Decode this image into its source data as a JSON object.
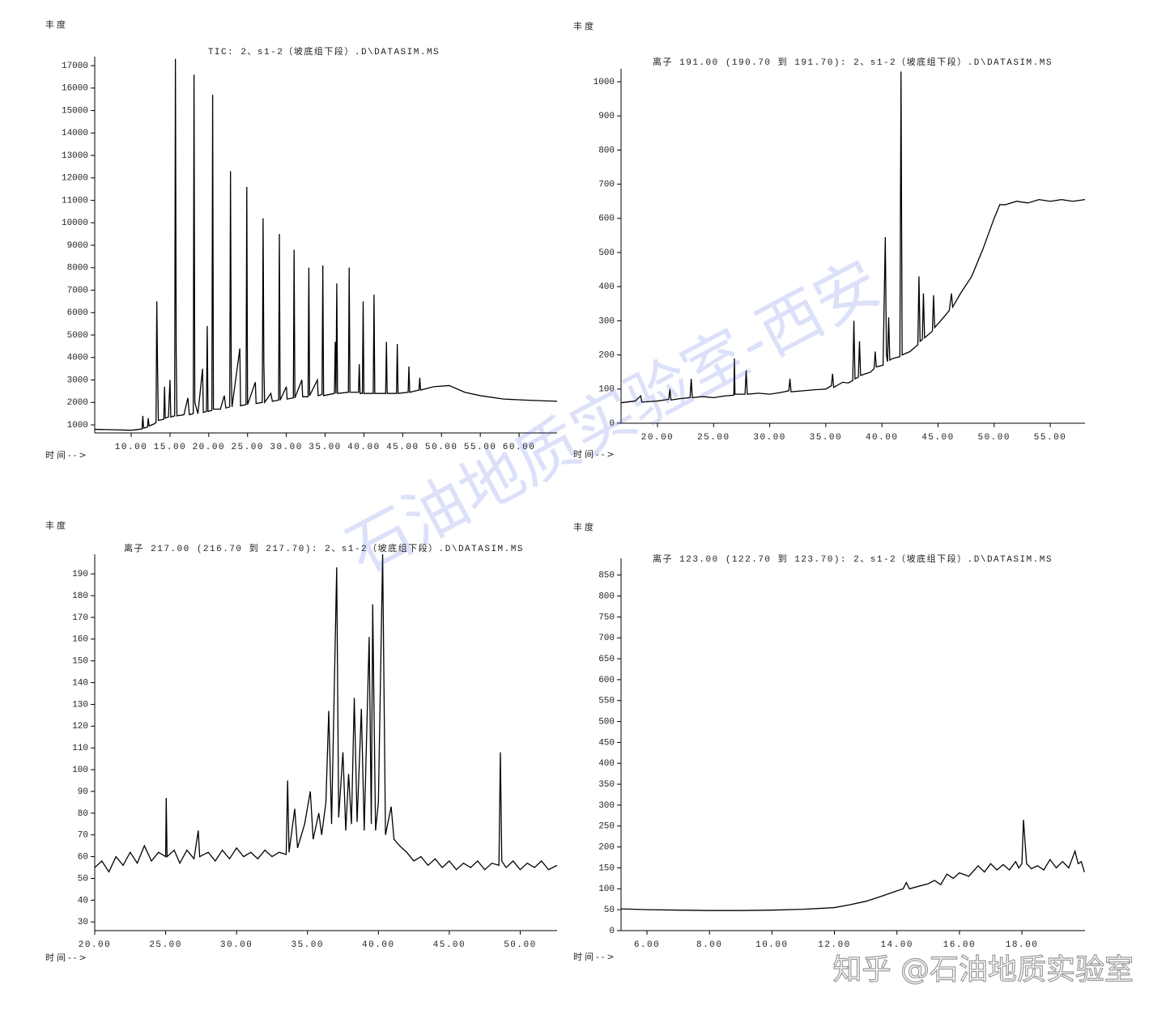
{
  "chart_data": [
    {
      "type": "line",
      "title": "TIC: 2、s1-2（坡底组下段）.D\\DATASIM.MS",
      "y_label": "丰度",
      "x_label": "时间-->",
      "color": "#000000",
      "xlim": [
        5.3,
        64.9
      ],
      "ylim": [
        640,
        17400
      ],
      "xticks": [
        {
          "value": 10,
          "label": "10.00"
        },
        {
          "value": 15,
          "label": "15.00"
        },
        {
          "value": 20,
          "label": "20.00"
        },
        {
          "value": 25,
          "label": "25.00"
        },
        {
          "value": 30,
          "label": "30.00"
        },
        {
          "value": 35,
          "label": "35.00"
        },
        {
          "value": 40,
          "label": "40.00"
        },
        {
          "value": 45,
          "label": "45.00"
        },
        {
          "value": 50,
          "label": "50.00"
        },
        {
          "value": 55,
          "label": "55.00"
        },
        {
          "value": 60,
          "label": "60.00"
        }
      ],
      "yticks": [
        1000,
        2000,
        3000,
        4000,
        5000,
        6000,
        7000,
        8000,
        9000,
        10000,
        11000,
        12000,
        13000,
        14000,
        15000,
        16000,
        17000
      ],
      "x": [
        5.3,
        8,
        10,
        11,
        11.4,
        11.5,
        11.6,
        12.1,
        12.2,
        12.3,
        13,
        13.2,
        13.3,
        13.4,
        13.5,
        14.2,
        14.3,
        14.4,
        14.8,
        15,
        15.1,
        15.6,
        15.7,
        15.8,
        15.9,
        16.8,
        17.3,
        17.5,
        18,
        18.1,
        18.2,
        18.6,
        19.2,
        19.3,
        19.7,
        19.8,
        19.9,
        20.4,
        20.5,
        20.6,
        21.5,
        22,
        22.2,
        22.7,
        22.8,
        22.9,
        23,
        24,
        24.1,
        24.8,
        24.9,
        25,
        26,
        26.1,
        26.9,
        27,
        27.1,
        27.2,
        28,
        28.2,
        29,
        29.1,
        29.2,
        30,
        30.1,
        30.9,
        31,
        31.1,
        32,
        32.1,
        32.8,
        32.9,
        33,
        34,
        34.1,
        34.6,
        34.7,
        34.8,
        36.2,
        36.3,
        36.4,
        36.5,
        36.6,
        38,
        38.1,
        38.2,
        39.3,
        39.4,
        39.5,
        39.8,
        39.9,
        40,
        41.2,
        41.3,
        41.4,
        42.8,
        42.9,
        43,
        44.2,
        44.3,
        44.4,
        45.7,
        45.8,
        45.9,
        47.1,
        47.2,
        47.3,
        49,
        51,
        53,
        55,
        58,
        61,
        64.9
      ],
      "values": [
        800,
        780,
        760,
        800,
        820,
        1400,
        850,
        900,
        1300,
        950,
        1050,
        1100,
        6500,
        3500,
        1200,
        1250,
        2700,
        1300,
        1350,
        3000,
        1350,
        1400,
        17300,
        4200,
        1400,
        1450,
        2200,
        1450,
        1500,
        16600,
        2000,
        1500,
        3500,
        1550,
        1600,
        5400,
        1600,
        1650,
        15700,
        1700,
        1700,
        2300,
        1750,
        1800,
        12300,
        3300,
        1800,
        4400,
        1850,
        1900,
        11600,
        1900,
        2900,
        1950,
        2000,
        10200,
        3700,
        2000,
        2400,
        2050,
        2100,
        9500,
        2100,
        2700,
        2150,
        2200,
        8800,
        2200,
        3000,
        2250,
        2250,
        8000,
        2300,
        3000,
        2300,
        2350,
        8100,
        2300,
        2400,
        4700,
        2400,
        7300,
        2400,
        2450,
        8000,
        2450,
        2450,
        3700,
        2400,
        2400,
        6500,
        2400,
        2400,
        6800,
        2400,
        2400,
        4700,
        2400,
        2400,
        4600,
        2400,
        2450,
        3600,
        2450,
        2550,
        3100,
        2550,
        2700,
        2750,
        2450,
        2300,
        2150,
        2100,
        2050
      ]
    },
    {
      "type": "line",
      "title": "离子 191.00 (190.70 到 191.70): 2、s1-2（坡底组下段）.D\\DATASIM.MS",
      "y_label": "丰度",
      "x_label": "时间-->",
      "color": "#000000",
      "xlim": [
        16.75,
        58.1
      ],
      "ylim": [
        0,
        1038
      ],
      "xticks": [
        {
          "value": 20,
          "label": "20.00"
        },
        {
          "value": 25,
          "label": "25.00"
        },
        {
          "value": 30,
          "label": "30.00"
        },
        {
          "value": 35,
          "label": "35.00"
        },
        {
          "value": 40,
          "label": "40.00"
        },
        {
          "value": 45,
          "label": "45.00"
        },
        {
          "value": 50,
          "label": "50.00"
        },
        {
          "value": 55,
          "label": "55.00"
        }
      ],
      "yticks": [
        0,
        100,
        200,
        300,
        400,
        500,
        600,
        700,
        800,
        900,
        1000
      ],
      "x": [
        16.75,
        18,
        18.5,
        18.6,
        20,
        21,
        21.1,
        21.2,
        22,
        22.9,
        23,
        23.1,
        24,
        25,
        26,
        26.8,
        26.85,
        26.9,
        27.8,
        27.9,
        28,
        29,
        30,
        31,
        31.7,
        31.8,
        31.9,
        33,
        34,
        35,
        35.5,
        35.6,
        35.7,
        36.5,
        37,
        37.4,
        37.5,
        37.6,
        37.9,
        38,
        38.1,
        39,
        39.3,
        39.4,
        39.5,
        40.1,
        40.3,
        40.4,
        40.5,
        40.6,
        40.7,
        41,
        41.6,
        41.7,
        41.8,
        42.5,
        43.2,
        43.3,
        43.4,
        43.6,
        43.7,
        43.8,
        44.5,
        44.6,
        44.7,
        45.5,
        46,
        46.2,
        46.3,
        47,
        48,
        49,
        50,
        50.5,
        51,
        52,
        53,
        54,
        55,
        56,
        57,
        58.1
      ],
      "values": [
        60,
        65,
        80,
        62,
        65,
        70,
        100,
        68,
        72,
        75,
        130,
        75,
        78,
        75,
        80,
        82,
        190,
        85,
        85,
        155,
        85,
        88,
        85,
        90,
        95,
        130,
        92,
        95,
        98,
        100,
        110,
        145,
        105,
        120,
        118,
        125,
        300,
        130,
        135,
        240,
        140,
        150,
        160,
        210,
        165,
        170,
        545,
        200,
        180,
        310,
        185,
        190,
        195,
        1030,
        200,
        210,
        230,
        430,
        240,
        245,
        380,
        250,
        270,
        375,
        280,
        310,
        330,
        380,
        340,
        380,
        430,
        510,
        600,
        640,
        640,
        650,
        645,
        655,
        650,
        655,
        650,
        655
      ]
    },
    {
      "type": "line",
      "title": "离子 217.00 (216.70 到 217.70): 2、s1-2（坡底组下段）.D\\DATASIM.MS",
      "y_label": "丰度",
      "x_label": "时间-->",
      "color": "#000000",
      "xlim": [
        20,
        52.6
      ],
      "ylim": [
        26,
        199
      ],
      "xticks": [
        {
          "value": 20,
          "label": "20.00"
        },
        {
          "value": 25,
          "label": "25.00"
        },
        {
          "value": 30,
          "label": "30.00"
        },
        {
          "value": 35,
          "label": "35.00"
        },
        {
          "value": 40,
          "label": "40.00"
        },
        {
          "value": 45,
          "label": "45.00"
        },
        {
          "value": 50,
          "label": "50.00"
        }
      ],
      "yticks": [
        30,
        40,
        50,
        60,
        70,
        80,
        90,
        100,
        110,
        120,
        130,
        140,
        150,
        160,
        170,
        180,
        190
      ],
      "x": [
        20,
        20.5,
        21,
        21.5,
        22,
        22.5,
        23,
        23.5,
        24,
        24.5,
        25,
        25.04,
        25.1,
        25.6,
        26,
        26.5,
        27,
        27.3,
        27.4,
        28,
        28.5,
        29,
        29.5,
        30,
        30.5,
        31,
        31.5,
        32,
        32.5,
        33,
        33.5,
        33.6,
        33.7,
        34.1,
        34.3,
        34.8,
        35.2,
        35.4,
        35.8,
        36,
        36.3,
        36.5,
        36.7,
        37.06,
        37.2,
        37.5,
        37.7,
        37.9,
        38.1,
        38.3,
        38.5,
        38.8,
        39,
        39.35,
        39.5,
        39.6,
        39.8,
        40,
        40.3,
        40.5,
        40.9,
        41.1,
        41.5,
        42,
        42.5,
        43,
        43.5,
        44,
        44.5,
        45,
        45.5,
        46,
        46.5,
        47,
        47.5,
        48,
        48.5,
        48.6,
        48.7,
        49,
        49.5,
        50,
        50.5,
        51,
        51.5,
        52,
        52.6
      ],
      "values": [
        55,
        58,
        53,
        60,
        56,
        62,
        57,
        65,
        58,
        62,
        60,
        87,
        60,
        63,
        57,
        63,
        59,
        72,
        60,
        62,
        58,
        63,
        59,
        64,
        60,
        62,
        59,
        63,
        60,
        62,
        61,
        95,
        62,
        82,
        64,
        75,
        90,
        68,
        80,
        70,
        85,
        127,
        75,
        193,
        78,
        108,
        72,
        98,
        75,
        133,
        76,
        128,
        72,
        161,
        75,
        176,
        72,
        85,
        199,
        70,
        83,
        68,
        65,
        62,
        58,
        60,
        56,
        59,
        55,
        58,
        54,
        57,
        55,
        58,
        54,
        57,
        56,
        108,
        58,
        55,
        58,
        54,
        57,
        55,
        58,
        54,
        56
      ]
    },
    {
      "type": "line",
      "title": "离子 123.00 (122.70 到 123.70): 2、s1-2（坡底组下段）.D\\DATASIM.MS",
      "y_label": "丰度",
      "x_label": "时间-->",
      "color": "#000000",
      "xlim": [
        5.17,
        20.02
      ],
      "ylim": [
        0,
        890
      ],
      "xticks": [
        {
          "value": 6,
          "label": "6.00"
        },
        {
          "value": 8,
          "label": "8.00"
        },
        {
          "value": 10,
          "label": "10.00"
        },
        {
          "value": 12,
          "label": "12.00"
        },
        {
          "value": 14,
          "label": "14.00"
        },
        {
          "value": 16,
          "label": "16.00"
        },
        {
          "value": 18,
          "label": "18.00"
        }
      ],
      "yticks": [
        0,
        50,
        100,
        150,
        200,
        250,
        300,
        350,
        400,
        450,
        500,
        550,
        600,
        650,
        700,
        750,
        800,
        850
      ],
      "x": [
        5.17,
        6,
        7,
        8,
        9,
        10,
        11,
        12,
        12.5,
        13,
        13.5,
        14,
        14.2,
        14.3,
        14.4,
        15,
        15.2,
        15.4,
        15.6,
        15.8,
        16,
        16.3,
        16.6,
        16.8,
        17,
        17.2,
        17.4,
        17.6,
        17.8,
        17.9,
        18,
        18.05,
        18.15,
        18.3,
        18.5,
        18.7,
        18.9,
        19.1,
        19.3,
        19.5,
        19.7,
        19.8,
        19.9,
        20
      ],
      "values": [
        52,
        50,
        49,
        48,
        48,
        49,
        51,
        55,
        62,
        70,
        82,
        95,
        100,
        115,
        100,
        112,
        120,
        110,
        135,
        125,
        138,
        130,
        155,
        140,
        160,
        145,
        158,
        145,
        165,
        150,
        160,
        265,
        160,
        148,
        155,
        145,
        170,
        150,
        165,
        150,
        190,
        160,
        165,
        140
      ]
    }
  ],
  "watermark": "石油地质实验室-西安",
  "credit": "知乎 @石油地质实验室"
}
